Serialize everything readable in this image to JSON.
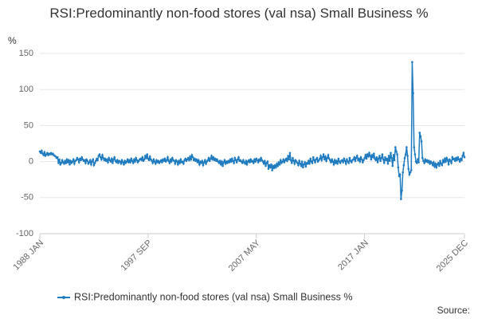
{
  "chart_data": {
    "type": "line",
    "title": "RSI:Predominantly non-food stores (val nsa) Small Business %",
    "y_label": "%",
    "source": "Source:",
    "ylim": [
      -100,
      150
    ],
    "yticks": [
      -100,
      -50,
      0,
      50,
      100,
      150
    ],
    "grid": true,
    "categories": [
      "1988 JAN",
      null,
      null,
      null,
      null,
      null,
      null,
      null,
      null,
      null,
      null,
      null,
      null,
      null,
      null,
      null,
      null,
      null,
      null,
      null,
      null,
      null,
      null,
      null,
      null,
      null,
      null,
      null,
      null,
      null,
      null,
      null,
      null,
      null,
      null,
      null,
      null,
      null,
      null,
      null,
      null,
      null,
      null,
      null,
      null,
      null,
      null,
      null,
      null,
      null,
      null,
      null,
      null,
      null,
      null,
      null,
      null,
      null,
      null,
      null,
      null,
      null,
      null,
      null,
      null,
      null,
      null,
      null,
      null,
      null,
      null,
      null,
      null,
      null,
      null,
      null,
      null,
      null,
      null,
      null,
      null,
      null,
      null,
      null,
      null,
      null,
      null,
      null,
      null,
      null,
      null,
      null,
      null,
      null,
      null,
      null,
      null,
      null,
      null,
      null,
      null,
      null,
      null,
      null,
      null,
      null,
      null,
      null,
      null,
      null,
      null,
      null,
      null,
      null,
      null,
      null,
      "1997 SEP",
      null,
      null,
      null,
      null,
      null,
      null,
      null,
      null,
      null,
      null,
      null,
      null,
      null,
      null,
      null,
      null,
      null,
      null,
      null,
      null,
      null,
      null,
      null,
      null,
      null,
      null,
      null,
      null,
      null,
      null,
      null,
      null,
      null,
      null,
      null,
      null,
      null,
      null,
      null,
      null,
      null,
      null,
      null,
      null,
      null,
      null,
      null,
      null,
      null,
      null,
      null,
      null,
      null,
      null,
      null,
      null,
      null,
      null,
      null,
      null,
      null,
      null,
      null,
      null,
      null,
      null,
      null,
      null,
      null,
      null,
      null,
      null,
      null,
      null,
      null,
      null,
      null,
      null,
      null,
      null,
      null,
      null,
      null,
      null,
      null,
      null,
      null,
      null,
      null,
      null,
      null,
      null,
      null,
      null,
      null,
      null,
      null,
      null,
      null,
      null,
      null,
      null,
      null,
      null,
      null,
      null,
      null,
      null,
      null,
      null,
      null,
      null,
      null,
      null,
      null,
      "2007 MAY",
      null,
      null,
      null,
      null,
      null,
      null,
      null,
      null,
      null,
      null,
      null,
      null,
      null,
      null,
      null,
      null,
      null,
      null,
      null,
      null,
      null,
      null,
      null,
      null,
      null,
      null,
      null,
      null,
      null,
      null,
      null,
      null,
      null,
      null,
      null,
      null,
      null,
      null,
      null,
      null,
      null,
      null,
      null,
      null,
      null,
      null,
      null,
      null,
      null,
      null,
      null,
      null,
      null,
      null,
      null,
      null,
      null,
      null,
      null,
      null,
      null,
      null,
      null,
      null,
      null,
      null,
      null,
      null,
      null,
      null,
      null,
      null,
      null,
      null,
      null,
      null,
      null,
      null,
      null,
      null,
      null,
      null,
      null,
      null,
      null,
      null,
      null,
      null,
      null,
      null,
      null,
      null,
      null,
      null,
      null,
      null,
      null,
      null,
      null,
      null,
      null,
      null,
      null,
      null,
      null,
      null,
      null,
      null,
      null,
      null,
      null,
      null,
      null,
      null,
      null,
      "2017 JAN",
      null,
      null,
      null,
      null,
      null,
      null,
      null,
      null,
      null,
      null,
      null,
      null,
      null,
      null,
      null,
      null,
      null,
      null,
      null,
      null,
      null,
      null,
      null,
      null,
      null,
      null,
      null,
      null,
      null,
      null,
      null,
      null,
      null,
      null,
      null,
      null,
      null,
      null,
      null,
      null,
      null,
      null,
      null,
      null,
      null,
      null,
      null,
      null,
      null,
      null,
      null,
      null,
      null,
      null,
      null,
      null,
      null,
      null,
      null,
      null,
      null,
      null,
      null,
      null,
      null,
      null,
      null,
      null,
      null,
      null,
      null,
      null,
      null,
      null,
      null,
      null,
      null,
      null,
      null,
      null,
      null,
      null,
      null,
      null,
      null,
      null,
      null,
      null,
      null,
      null,
      null,
      null,
      null,
      null,
      null,
      null,
      null,
      null,
      null,
      null,
      null,
      null,
      null,
      null,
      null,
      null,
      "2025 DEC"
    ],
    "series": [
      {
        "name": "RSI:Predominantly non-food stores (val nsa) Small Business %",
        "color": "#1f7bbf",
        "values": [
          14,
          12,
          15,
          11,
          9,
          13,
          8,
          10,
          12,
          9,
          11,
          10,
          12,
          10,
          11,
          9,
          8,
          7,
          5,
          6,
          -2,
          3,
          -4,
          -2,
          2,
          -1,
          -3,
          1,
          -2,
          3,
          -1,
          2,
          -4,
          1,
          -2,
          0,
          3,
          -3,
          1,
          2,
          5,
          3,
          -1,
          4,
          2,
          6,
          3,
          1,
          2,
          -2,
          3,
          1,
          -3,
          -1,
          2,
          -4,
          0,
          3,
          -5,
          -2,
          1,
          4,
          2,
          8,
          10,
          6,
          3,
          9,
          5,
          2,
          4,
          1,
          3,
          -1,
          5,
          2,
          0,
          4,
          -2,
          3,
          6,
          1,
          -1,
          2,
          -2,
          1,
          0,
          -3,
          2,
          -1,
          -4,
          1,
          -2,
          0,
          3,
          -1,
          2,
          -1,
          4,
          1,
          -2,
          3,
          0,
          5,
          2,
          -1,
          1,
          3,
          4,
          2,
          6,
          1,
          3,
          8,
          5,
          10,
          4,
          2,
          7,
          3,
          1,
          -2,
          3,
          0,
          -3,
          2,
          -1,
          1,
          -2,
          0,
          2,
          -1,
          3,
          1,
          4,
          0,
          2,
          6,
          1,
          -2,
          3,
          0,
          5,
          2,
          1,
          -3,
          2,
          0,
          -4,
          1,
          -2,
          3,
          -1,
          0,
          -3,
          2,
          4,
          1,
          3,
          5,
          2,
          7,
          3,
          9,
          6,
          2,
          4,
          1,
          3,
          -1,
          2,
          -4,
          0,
          -2,
          1,
          -5,
          -1,
          2,
          -3,
          0,
          2,
          5,
          1,
          4,
          8,
          3,
          6,
          2,
          4,
          1,
          3,
          0,
          -2,
          1,
          -4,
          0,
          -6,
          -1,
          2,
          -3,
          0,
          -2,
          1,
          -1,
          3,
          0,
          4,
          1,
          -2,
          5,
          2,
          -1,
          3,
          6,
          1,
          2,
          0,
          -2,
          2,
          -1,
          -3,
          1,
          -4,
          0,
          2,
          -1,
          3,
          0,
          1,
          -2,
          3,
          0,
          4,
          2,
          -1,
          3,
          1,
          5,
          2,
          0,
          -3,
          1,
          -6,
          -2,
          0,
          -10,
          -5,
          -8,
          -4,
          -12,
          -6,
          -9,
          -5,
          -8,
          -3,
          -6,
          -1,
          -4,
          2,
          -2,
          0,
          3,
          -1,
          2,
          4,
          1,
          8,
          3,
          12,
          2,
          -2,
          5,
          1,
          -3,
          2,
          0,
          -2,
          -5,
          1,
          -3,
          -6,
          0,
          -8,
          -4,
          -1,
          -7,
          -2,
          -3,
          1,
          -3,
          4,
          0,
          -2,
          6,
          2,
          -1,
          3,
          5,
          0,
          2,
          4,
          8,
          2,
          6,
          10,
          3,
          7,
          1,
          5,
          9,
          4,
          2,
          -1,
          3,
          0,
          -4,
          2,
          -2,
          1,
          -3,
          4,
          0,
          -2,
          1,
          2,
          -1,
          4,
          1,
          -3,
          3,
          0,
          -2,
          5,
          1,
          -1,
          2,
          3,
          6,
          1,
          5,
          8,
          2,
          4,
          0,
          6,
          3,
          -1,
          2,
          5,
          9,
          4,
          10,
          7,
          12,
          8,
          3,
          9,
          6,
          11,
          4,
          2,
          6,
          -1,
          4,
          8,
          1,
          5,
          10,
          3,
          -2,
          6,
          2,
          4,
          -3,
          8,
          1,
          12,
          5,
          -6,
          9,
          2,
          20,
          14,
          10,
          -8,
          -20,
          -18,
          -52,
          -40,
          -15,
          -5,
          5,
          10,
          20,
          8,
          -10,
          -18,
          -15,
          -12,
          138,
          95,
          20,
          10,
          0,
          -2,
          3,
          -1,
          40,
          35,
          28,
          5,
          1,
          -2,
          3,
          0,
          2,
          -1,
          1,
          -3,
          0,
          -2,
          -5,
          -1,
          -7,
          -3,
          -8,
          -4,
          -2,
          -6,
          1,
          -3,
          -5,
          2,
          -1,
          4,
          0,
          5,
          2,
          -4,
          3,
          1,
          -2,
          6,
          3,
          4,
          1,
          5,
          2,
          6,
          3,
          0,
          4,
          2,
          8,
          12,
          6
        ]
      }
    ]
  }
}
